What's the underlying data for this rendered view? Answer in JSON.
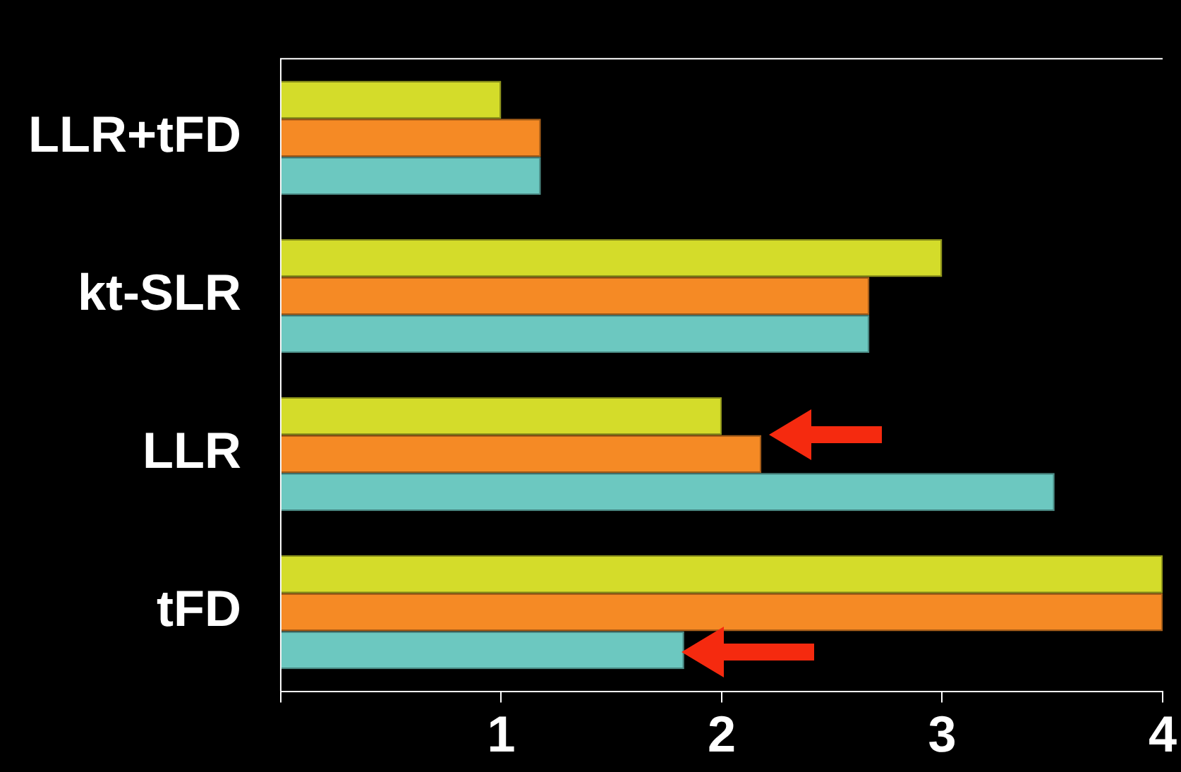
{
  "chart_data": {
    "type": "bar",
    "orientation": "horizontal",
    "categories": [
      "LLR+tFD",
      "kt-SLR",
      "LLR",
      "tFD"
    ],
    "series": [
      {
        "color": "#d4dc2a",
        "values": [
          1.0,
          3.0,
          2.0,
          4.0
        ]
      },
      {
        "color": "#f58a25",
        "values": [
          1.18,
          2.67,
          2.18,
          4.0
        ]
      },
      {
        "color": "#6cc8c0",
        "values": [
          1.18,
          2.67,
          3.51,
          1.83
        ]
      }
    ],
    "xlim": [
      0,
      4
    ],
    "xticks": [
      {
        "value": 0,
        "label": null
      },
      1,
      2,
      3,
      4
    ],
    "grid": false
  }
}
